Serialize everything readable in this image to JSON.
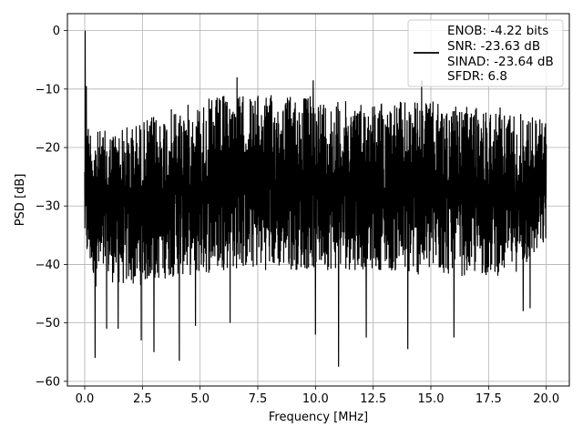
{
  "chart_data": {
    "type": "line",
    "title": "",
    "xlabel": "Frequency [MHz]",
    "ylabel": "PSD [dB]",
    "xlim": [
      -0.75,
      21.0
    ],
    "ylim": [
      -60.8,
      2.9
    ],
    "xticks": [
      0.0,
      2.5,
      5.0,
      7.5,
      10.0,
      12.5,
      15.0,
      17.5,
      20.0
    ],
    "xtick_labels": [
      "0.0",
      "2.5",
      "5.0",
      "7.5",
      "10.0",
      "12.5",
      "15.0",
      "17.5",
      "20.0"
    ],
    "yticks": [
      0,
      -10,
      -20,
      -30,
      -40,
      -50,
      -60
    ],
    "ytick_labels": [
      "0",
      "−10",
      "−20",
      "−30",
      "−40",
      "−50",
      "−60"
    ],
    "grid": true,
    "legend_position": "top-right",
    "line_color": "#000000",
    "series": [
      {
        "legend_lines": [
          "ENOB: -4.22 bits",
          "SNR: -23.63 dB",
          "SINAD: -23.64 dB",
          "SFDR: 6.8"
        ],
        "envelope": {
          "x": [
            0.0,
            0.1,
            0.5,
            1.0,
            2.0,
            3.0,
            4.0,
            5.0,
            6.0,
            7.0,
            8.0,
            9.0,
            10.0,
            11.0,
            12.0,
            13.0,
            14.0,
            15.0,
            16.0,
            17.0,
            18.0,
            19.0,
            20.0
          ],
          "upper": [
            -17,
            -15,
            -17,
            -17,
            -16,
            -14.5,
            -13,
            -12,
            -11,
            -11,
            -11,
            -11,
            -11,
            -12,
            -12,
            -12,
            -12,
            -12,
            -13,
            -13,
            -13,
            -14,
            -15
          ],
          "lower": [
            -37,
            -40,
            -44,
            -43,
            -44,
            -43,
            -42,
            -42,
            -41,
            -41,
            -41,
            -41,
            -41,
            -41,
            -41,
            -41,
            -42,
            -42,
            -42,
            -42,
            -42,
            -41,
            -37
          ]
        },
        "peaks": [
          {
            "x": 0.02,
            "y": 0.0
          },
          {
            "x": 0.07,
            "y": -9.5
          },
          {
            "x": 6.6,
            "y": -8.0
          },
          {
            "x": 9.9,
            "y": -8.5
          },
          {
            "x": 14.6,
            "y": -8.5
          }
        ],
        "dips": [
          {
            "x": 0.45,
            "y": -56.0
          },
          {
            "x": 0.95,
            "y": -51.0
          },
          {
            "x": 1.45,
            "y": -51.0
          },
          {
            "x": 2.45,
            "y": -53.0
          },
          {
            "x": 3.0,
            "y": -55.0
          },
          {
            "x": 4.1,
            "y": -56.5
          },
          {
            "x": 4.8,
            "y": -50.5
          },
          {
            "x": 6.3,
            "y": -50.0
          },
          {
            "x": 10.0,
            "y": -52.0
          },
          {
            "x": 11.0,
            "y": -57.5
          },
          {
            "x": 12.2,
            "y": -52.5
          },
          {
            "x": 14.0,
            "y": -54.5
          },
          {
            "x": 16.0,
            "y": -52.5
          },
          {
            "x": 19.0,
            "y": -48.0
          },
          {
            "x": 19.3,
            "y": -47.5
          }
        ]
      }
    ]
  }
}
